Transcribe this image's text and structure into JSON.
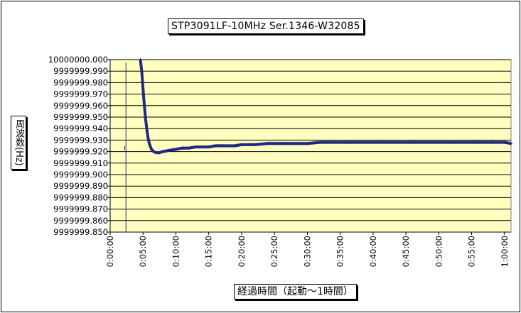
{
  "chart_data": {
    "type": "line",
    "title": "STP3091LF-10MHz  Ser.1346-W32085",
    "xlabel": "経過時間（起動～1時間）",
    "ylabel": "周波数(Hz)",
    "ylim": [
      9999999.85,
      10000000.0
    ],
    "xlim": [
      0,
      61
    ],
    "x_unit": "minutes",
    "y_tick_labels": [
      "10000000.000",
      "9999999.990",
      "9999999.980",
      "9999999.970",
      "9999999.960",
      "9999999.950",
      "9999999.940",
      "9999999.930",
      "9999999.920",
      "9999999.910",
      "9999999.900",
      "9999999.890",
      "9999999.880",
      "9999999.870",
      "9999999.860",
      "9999999.850"
    ],
    "x_tick_labels": [
      "0:00:00",
      "0:05:00",
      "0:10:00",
      "0:15:00",
      "0:20:00",
      "0:25:00",
      "0:30:00",
      "0:35:00",
      "0:40:00",
      "0:45:00",
      "0:50:00",
      "0:55:00",
      "1:00:00"
    ],
    "grid": true,
    "plot_background": "#ffffc0",
    "series_color": "#1f2a80",
    "series": [
      {
        "x": [
          2.2,
          2.4,
          4.6,
          4.8,
          5.0,
          5.2,
          5.4,
          5.6,
          5.8,
          6.0,
          6.3,
          6.6,
          7.0,
          7.5,
          8.0,
          9.0,
          10.0,
          11.0,
          12.0,
          13.0,
          14.0,
          15.0,
          16.0,
          17.0,
          18.0,
          19.0,
          20.0,
          22.0,
          24.0,
          26.0,
          28.0,
          30.0,
          32.0,
          34.0,
          36.0,
          38.0,
          40.0,
          42.0,
          44.0,
          46.0,
          48.0,
          50.0,
          52.0,
          54.0,
          56.0,
          58.0,
          60.0,
          61.0
        ],
        "y": [
          9999999.923,
          9999999.85,
          10000000.0,
          9999999.99,
          9999999.975,
          9999999.96,
          9999999.948,
          9999999.938,
          9999999.931,
          9999999.926,
          9999999.922,
          9999999.92,
          9999999.919,
          9999999.919,
          9999999.92,
          9999999.921,
          9999999.922,
          9999999.923,
          9999999.923,
          9999999.924,
          9999999.924,
          9999999.924,
          9999999.925,
          9999999.925,
          9999999.925,
          9999999.925,
          9999999.926,
          9999999.926,
          9999999.927,
          9999999.927,
          9999999.927,
          9999999.927,
          9999999.928,
          9999999.928,
          9999999.928,
          9999999.928,
          9999999.928,
          9999999.928,
          9999999.928,
          9999999.928,
          9999999.928,
          9999999.928,
          9999999.928,
          9999999.928,
          9999999.928,
          9999999.928,
          9999999.928,
          9999999.927
        ]
      }
    ]
  }
}
